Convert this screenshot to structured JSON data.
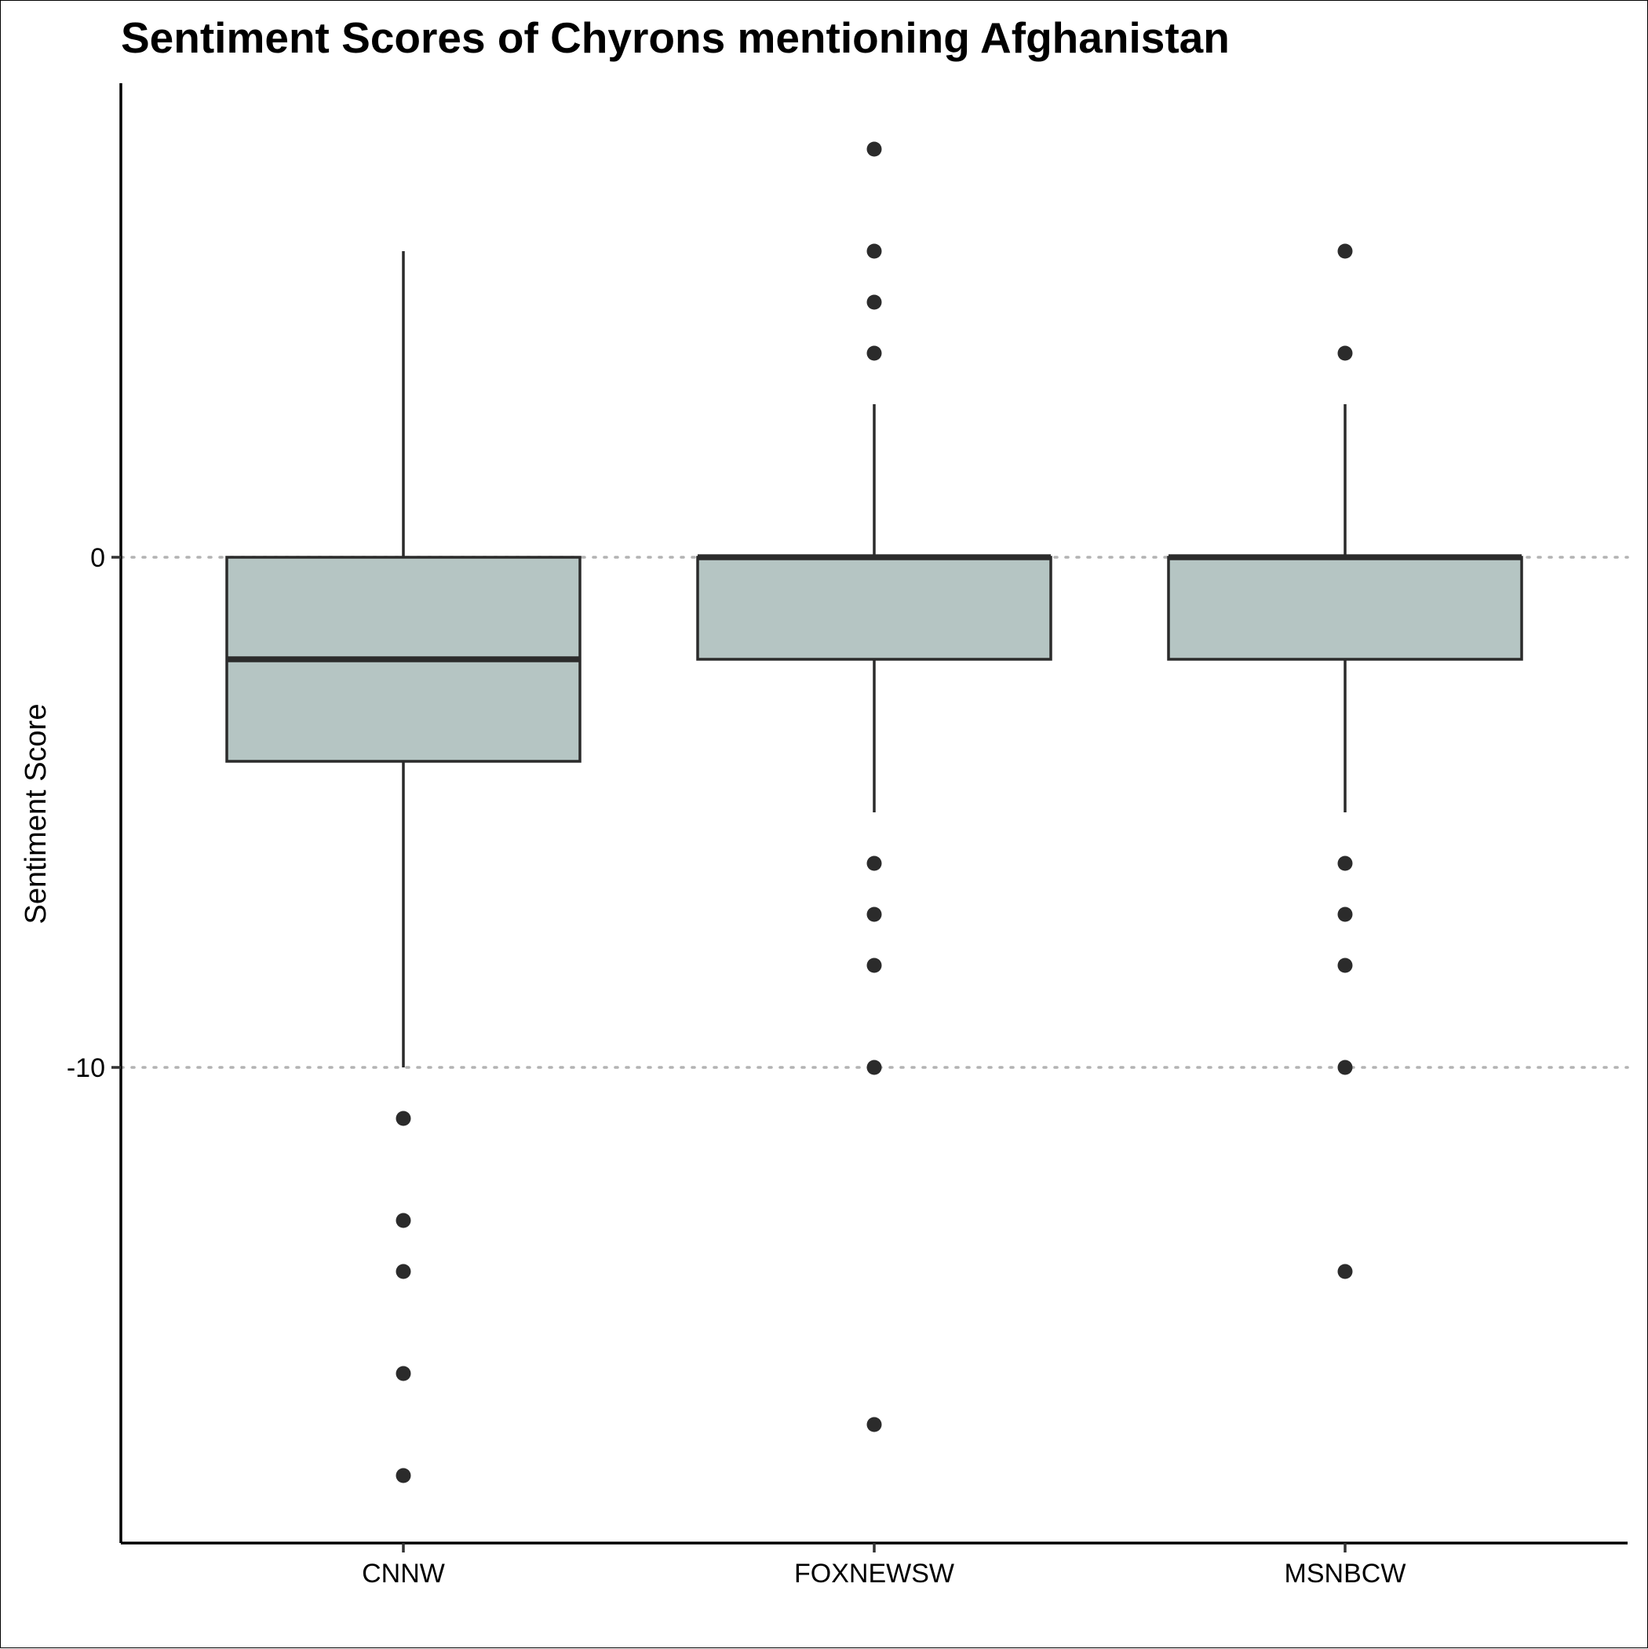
{
  "chart_data": {
    "type": "boxplot",
    "title": "Sentiment Scores of Chyrons mentioning Afghanistan",
    "xlabel": "",
    "ylabel": "Sentiment Score",
    "categories": [
      "CNNW",
      "FOXNEWSW",
      "MSNBCW"
    ],
    "yticks": [
      0,
      -10
    ],
    "ylim": [
      -19.7,
      9.2
    ],
    "grid": "dotted horizontal lines at y-axis ticks",
    "boxes": [
      {
        "category": "CNNW",
        "whisker_low": -10,
        "q1": -4,
        "median": -2,
        "q3": 0,
        "whisker_high": 6,
        "outliers": [
          -11,
          -13,
          -14,
          -16,
          -18
        ]
      },
      {
        "category": "FOXNEWSW",
        "whisker_low": -5,
        "q1": -2,
        "median": 0,
        "q3": 0,
        "whisker_high": 3,
        "outliers": [
          8,
          6,
          5,
          4,
          -6,
          -7,
          -8,
          -10,
          -17
        ]
      },
      {
        "category": "MSNBCW",
        "whisker_low": -5,
        "q1": -2,
        "median": 0,
        "q3": 0,
        "whisker_high": 3,
        "outliers": [
          6,
          4,
          -6,
          -7,
          -8,
          -10,
          -14
        ]
      }
    ],
    "colors": {
      "box_fill": "#b5c5c3",
      "box_stroke": "#2b2b2b",
      "outlier": "#2b2b2b",
      "grid": "#b3b3b3",
      "axis": "#000000"
    }
  }
}
